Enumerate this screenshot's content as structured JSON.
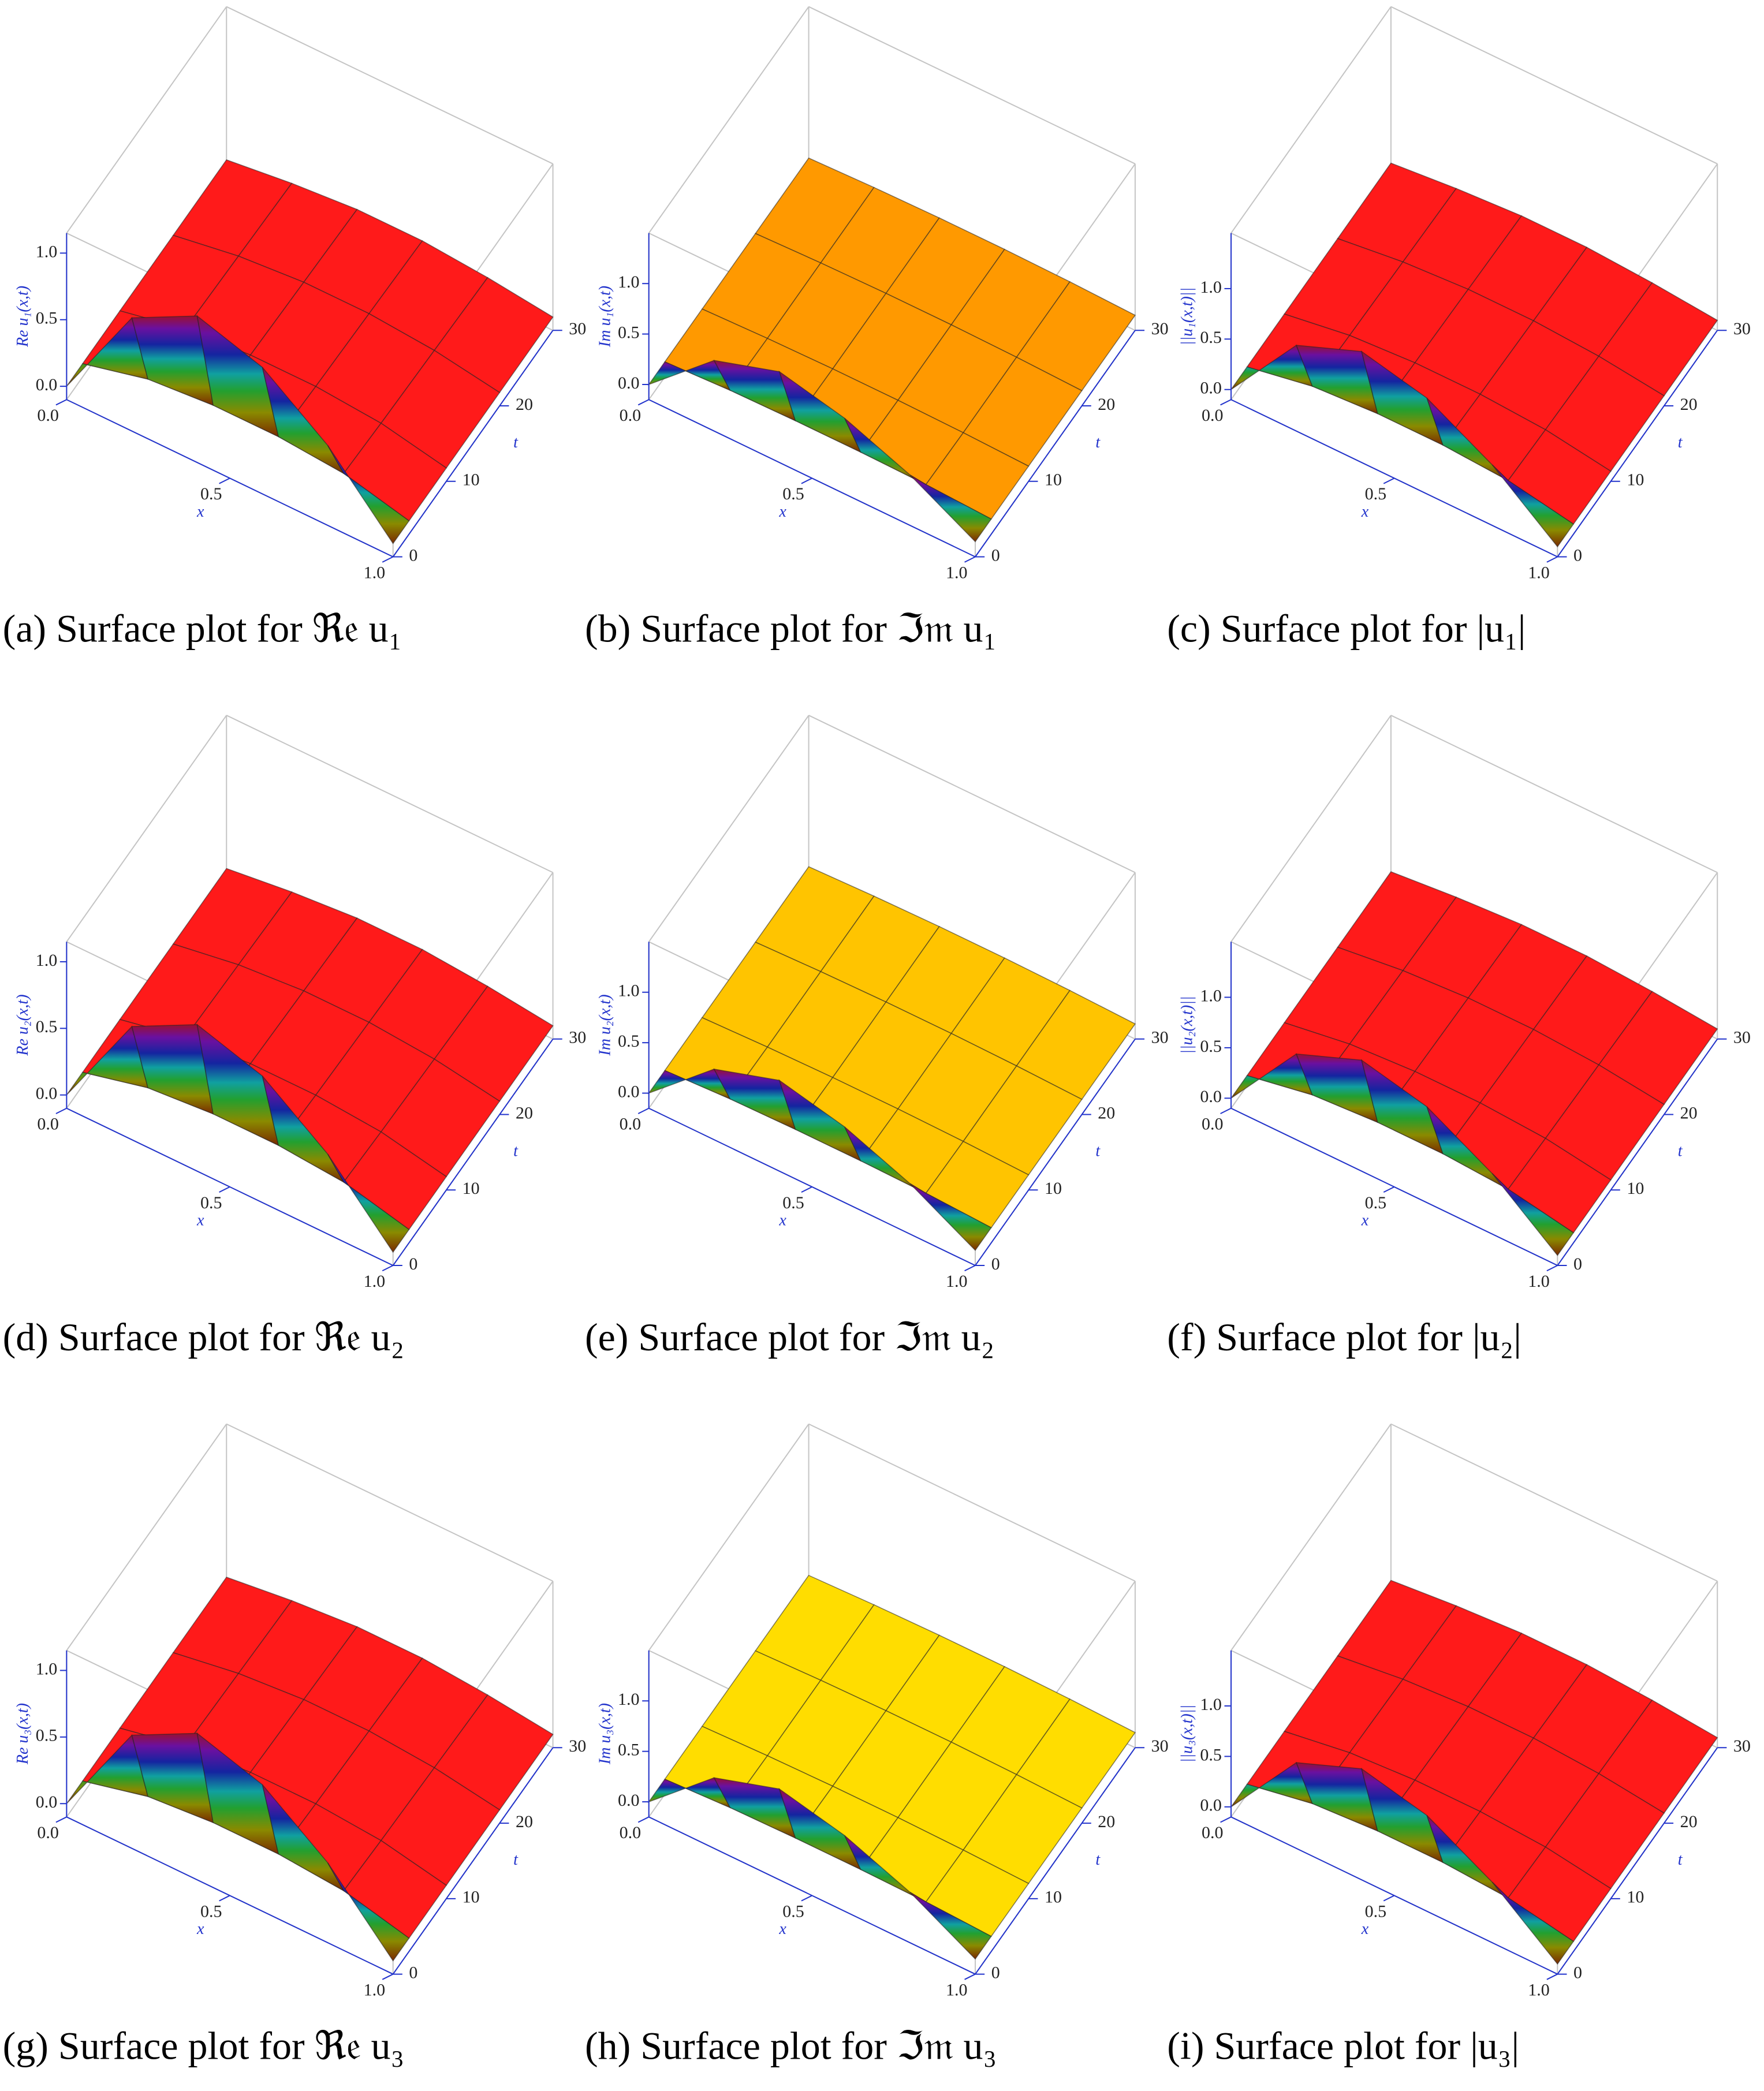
{
  "chart_data": [
    {
      "type": "surface",
      "caption": "(a) Surface plot for ℜ𝔢 u₁",
      "xlabel": "x",
      "tlabel": "t",
      "zlabel": "Re u₁(x,t)",
      "plane_color": "#ff1a1a",
      "xlim": [
        0,
        1
      ],
      "tlim": [
        0,
        30
      ],
      "zlim": [
        -0.1,
        1.15
      ],
      "xticks": [
        {
          "value": 0,
          "label": "0.0"
        },
        {
          "value": 0.5,
          "label": "0.5"
        },
        {
          "value": 1,
          "label": "1.0"
        }
      ],
      "tticks": [
        0,
        10,
        20,
        30
      ],
      "zticks": [
        {
          "value": 0,
          "label": "0.0"
        },
        {
          "value": 0.5,
          "label": "0.5"
        },
        {
          "value": 1,
          "label": "1.0"
        }
      ],
      "x": [
        0,
        0.2,
        0.4,
        0.6,
        0.8,
        1
      ],
      "t": [
        0,
        3,
        10,
        20,
        30
      ],
      "z": [
        [
          0,
          0.75,
          1.0,
          0.85,
          0.5,
          0
        ],
        [
          0,
          0.12,
          0.16,
          0.16,
          0.12,
          0
        ],
        [
          0,
          0.1,
          0.14,
          0.14,
          0.1,
          0
        ],
        [
          0,
          0.08,
          0.12,
          0.12,
          0.08,
          0
        ],
        [
          0,
          0.06,
          0.1,
          0.1,
          0.06,
          0
        ]
      ]
    },
    {
      "type": "surface",
      "caption": "(b) Surface plot for ℑ𝔪 u₁",
      "xlabel": "x",
      "tlabel": "t",
      "zlabel": "Im u₁(x,t)",
      "plane_color": "#ff9900",
      "xlim": [
        0,
        1
      ],
      "tlim": [
        0,
        30
      ],
      "zlim": [
        -0.15,
        1.5
      ],
      "xticks": [
        {
          "value": 0,
          "label": "0.0"
        },
        {
          "value": 0.5,
          "label": "0.5"
        },
        {
          "value": 1,
          "label": "1.0"
        }
      ],
      "tticks": [
        0,
        10,
        20,
        30
      ],
      "zticks": [
        {
          "value": 0,
          "label": "0.0"
        },
        {
          "value": 0.5,
          "label": "0.5"
        },
        {
          "value": 1,
          "label": "1.0"
        }
      ],
      "x": [
        0,
        0.2,
        0.4,
        0.6,
        0.8,
        1
      ],
      "t": [
        0,
        3,
        10,
        20,
        30
      ],
      "z": [
        [
          0,
          0.55,
          0.75,
          0.6,
          0.35,
          0
        ],
        [
          0,
          0.03,
          0.04,
          0.04,
          0.03,
          0
        ],
        [
          0,
          0.02,
          0.03,
          0.03,
          0.02,
          0
        ],
        [
          0,
          0.02,
          0.03,
          0.03,
          0.02,
          0
        ],
        [
          0,
          0.02,
          0.03,
          0.03,
          0.02,
          0
        ]
      ]
    },
    {
      "type": "surface",
      "caption": "(c) Surface plot for |u₁|",
      "xlabel": "x",
      "tlabel": "t",
      "zlabel": "||u₁(x,t)||",
      "plane_color": "#ff1a1a",
      "xlim": [
        0,
        1
      ],
      "tlim": [
        0,
        30
      ],
      "zlim": [
        -0.1,
        1.55
      ],
      "xticks": [
        {
          "value": 0,
          "label": "0.0"
        },
        {
          "value": 0.5,
          "label": "0.5"
        },
        {
          "value": 1,
          "label": "1.0"
        }
      ],
      "tticks": [
        0,
        10,
        20,
        30
      ],
      "zticks": [
        {
          "value": 0,
          "label": "0.0"
        },
        {
          "value": 0.5,
          "label": "0.5"
        },
        {
          "value": 1,
          "label": "1.0"
        }
      ],
      "x": [
        0,
        0.2,
        0.4,
        0.6,
        0.8,
        1
      ],
      "t": [
        0,
        3,
        10,
        20,
        30
      ],
      "z": [
        [
          0,
          0.75,
          1.0,
          0.85,
          0.5,
          0
        ],
        [
          0,
          0.12,
          0.16,
          0.16,
          0.12,
          0
        ],
        [
          0,
          0.1,
          0.14,
          0.14,
          0.1,
          0
        ],
        [
          0,
          0.08,
          0.12,
          0.12,
          0.08,
          0
        ],
        [
          0,
          0.06,
          0.1,
          0.1,
          0.06,
          0
        ]
      ]
    },
    {
      "type": "surface",
      "caption": "(d) Surface plot for ℜ𝔢 u₂",
      "xlabel": "x",
      "tlabel": "t",
      "zlabel": "Re u₂(x,t)",
      "plane_color": "#ff1a1a",
      "xlim": [
        0,
        1
      ],
      "tlim": [
        0,
        30
      ],
      "zlim": [
        -0.1,
        1.15
      ],
      "xticks": [
        {
          "value": 0,
          "label": "0.0"
        },
        {
          "value": 0.5,
          "label": "0.5"
        },
        {
          "value": 1,
          "label": "1.0"
        }
      ],
      "tticks": [
        0,
        10,
        20,
        30
      ],
      "zticks": [
        {
          "value": 0,
          "label": "0.0"
        },
        {
          "value": 0.5,
          "label": "0.5"
        },
        {
          "value": 1,
          "label": "1.0"
        }
      ],
      "x": [
        0,
        0.2,
        0.4,
        0.6,
        0.8,
        1
      ],
      "t": [
        0,
        3,
        10,
        20,
        30
      ],
      "z": [
        [
          0,
          0.75,
          1.0,
          0.85,
          0.5,
          0
        ],
        [
          0,
          0.12,
          0.16,
          0.16,
          0.12,
          0
        ],
        [
          0,
          0.1,
          0.14,
          0.14,
          0.1,
          0
        ],
        [
          0,
          0.08,
          0.12,
          0.12,
          0.08,
          0
        ],
        [
          0,
          0.06,
          0.1,
          0.1,
          0.06,
          0
        ]
      ]
    },
    {
      "type": "surface",
      "caption": "(e) Surface plot for ℑ𝔪 u₂",
      "xlabel": "x",
      "tlabel": "t",
      "zlabel": "Im u₂(x,t)",
      "plane_color": "#ffc400",
      "xlim": [
        0,
        1
      ],
      "tlim": [
        0,
        30
      ],
      "zlim": [
        -0.15,
        1.5
      ],
      "xticks": [
        {
          "value": 0,
          "label": "0.0"
        },
        {
          "value": 0.5,
          "label": "0.5"
        },
        {
          "value": 1,
          "label": "1.0"
        }
      ],
      "tticks": [
        0,
        10,
        20,
        30
      ],
      "zticks": [
        {
          "value": 0,
          "label": "0.0"
        },
        {
          "value": 0.5,
          "label": "0.5"
        },
        {
          "value": 1,
          "label": "1.0"
        }
      ],
      "x": [
        0,
        0.2,
        0.4,
        0.6,
        0.8,
        1
      ],
      "t": [
        0,
        3,
        10,
        20,
        30
      ],
      "z": [
        [
          0,
          0.55,
          0.75,
          0.6,
          0.35,
          0
        ],
        [
          0,
          0.03,
          0.04,
          0.04,
          0.03,
          0
        ],
        [
          0,
          0.02,
          0.03,
          0.03,
          0.02,
          0
        ],
        [
          0,
          0.02,
          0.03,
          0.03,
          0.02,
          0
        ],
        [
          0,
          0.02,
          0.03,
          0.03,
          0.02,
          0
        ]
      ]
    },
    {
      "type": "surface",
      "caption": "(f) Surface plot for |u₂|",
      "xlabel": "x",
      "tlabel": "t",
      "zlabel": "||u₂(x,t)||",
      "plane_color": "#ff1a1a",
      "xlim": [
        0,
        1
      ],
      "tlim": [
        0,
        30
      ],
      "zlim": [
        -0.1,
        1.55
      ],
      "xticks": [
        {
          "value": 0,
          "label": "0.0"
        },
        {
          "value": 0.5,
          "label": "0.5"
        },
        {
          "value": 1,
          "label": "1.0"
        }
      ],
      "tticks": [
        0,
        10,
        20,
        30
      ],
      "zticks": [
        {
          "value": 0,
          "label": "0.0"
        },
        {
          "value": 0.5,
          "label": "0.5"
        },
        {
          "value": 1,
          "label": "1.0"
        }
      ],
      "x": [
        0,
        0.2,
        0.4,
        0.6,
        0.8,
        1
      ],
      "t": [
        0,
        3,
        10,
        20,
        30
      ],
      "z": [
        [
          0,
          0.75,
          1.0,
          0.85,
          0.5,
          0
        ],
        [
          0,
          0.12,
          0.16,
          0.16,
          0.12,
          0
        ],
        [
          0,
          0.1,
          0.14,
          0.14,
          0.1,
          0
        ],
        [
          0,
          0.08,
          0.12,
          0.12,
          0.08,
          0
        ],
        [
          0,
          0.06,
          0.1,
          0.1,
          0.06,
          0
        ]
      ]
    },
    {
      "type": "surface",
      "caption": "(g) Surface plot for ℜ𝔢 u₃",
      "xlabel": "x",
      "tlabel": "t",
      "zlabel": "Re u₃(x,t)",
      "plane_color": "#ff1a1a",
      "xlim": [
        0,
        1
      ],
      "tlim": [
        0,
        30
      ],
      "zlim": [
        -0.1,
        1.15
      ],
      "xticks": [
        {
          "value": 0,
          "label": "0.0"
        },
        {
          "value": 0.5,
          "label": "0.5"
        },
        {
          "value": 1,
          "label": "1.0"
        }
      ],
      "tticks": [
        0,
        10,
        20,
        30
      ],
      "zticks": [
        {
          "value": 0,
          "label": "0.0"
        },
        {
          "value": 0.5,
          "label": "0.5"
        },
        {
          "value": 1,
          "label": "1.0"
        }
      ],
      "x": [
        0,
        0.2,
        0.4,
        0.6,
        0.8,
        1
      ],
      "t": [
        0,
        3,
        10,
        20,
        30
      ],
      "z": [
        [
          0,
          0.75,
          1.0,
          0.85,
          0.5,
          0
        ],
        [
          0,
          0.12,
          0.16,
          0.16,
          0.12,
          0
        ],
        [
          0,
          0.1,
          0.14,
          0.14,
          0.1,
          0
        ],
        [
          0,
          0.08,
          0.12,
          0.12,
          0.08,
          0
        ],
        [
          0,
          0.06,
          0.1,
          0.1,
          0.06,
          0
        ]
      ]
    },
    {
      "type": "surface",
      "caption": "(h) Surface plot for ℑ𝔪 u₃",
      "xlabel": "x",
      "tlabel": "t",
      "zlabel": "Im u₃(x,t)",
      "plane_color": "#ffdd00",
      "xlim": [
        0,
        1
      ],
      "tlim": [
        0,
        30
      ],
      "zlim": [
        -0.15,
        1.5
      ],
      "xticks": [
        {
          "value": 0,
          "label": "0.0"
        },
        {
          "value": 0.5,
          "label": "0.5"
        },
        {
          "value": 1,
          "label": "1.0"
        }
      ],
      "tticks": [
        0,
        10,
        20,
        30
      ],
      "zticks": [
        {
          "value": 0,
          "label": "0.0"
        },
        {
          "value": 0.5,
          "label": "0.5"
        },
        {
          "value": 1,
          "label": "1.0"
        }
      ],
      "x": [
        0,
        0.2,
        0.4,
        0.6,
        0.8,
        1
      ],
      "t": [
        0,
        3,
        10,
        20,
        30
      ],
      "z": [
        [
          0,
          0.55,
          0.75,
          0.6,
          0.35,
          0
        ],
        [
          0,
          0.03,
          0.04,
          0.04,
          0.03,
          0
        ],
        [
          0,
          0.02,
          0.03,
          0.03,
          0.02,
          0
        ],
        [
          0,
          0.02,
          0.03,
          0.03,
          0.02,
          0
        ],
        [
          0,
          0.02,
          0.03,
          0.03,
          0.02,
          0
        ]
      ]
    },
    {
      "type": "surface",
      "caption": "(i) Surface plot for |u₃|",
      "xlabel": "x",
      "tlabel": "t",
      "zlabel": "||u₃(x,t)||",
      "plane_color": "#ff1a1a",
      "xlim": [
        0,
        1
      ],
      "tlim": [
        0,
        30
      ],
      "zlim": [
        -0.1,
        1.55
      ],
      "xticks": [
        {
          "value": 0,
          "label": "0.0"
        },
        {
          "value": 0.5,
          "label": "0.5"
        },
        {
          "value": 1,
          "label": "1.0"
        }
      ],
      "tticks": [
        0,
        10,
        20,
        30
      ],
      "zticks": [
        {
          "value": 0,
          "label": "0.0"
        },
        {
          "value": 0.5,
          "label": "0.5"
        },
        {
          "value": 1,
          "label": "1.0"
        }
      ],
      "x": [
        0,
        0.2,
        0.4,
        0.6,
        0.8,
        1
      ],
      "t": [
        0,
        3,
        10,
        20,
        30
      ],
      "z": [
        [
          0,
          0.75,
          1.0,
          0.85,
          0.5,
          0
        ],
        [
          0,
          0.12,
          0.16,
          0.16,
          0.12,
          0
        ],
        [
          0,
          0.1,
          0.14,
          0.14,
          0.1,
          0
        ],
        [
          0,
          0.08,
          0.12,
          0.12,
          0.08,
          0
        ],
        [
          0,
          0.06,
          0.1,
          0.1,
          0.06,
          0
        ]
      ]
    }
  ]
}
